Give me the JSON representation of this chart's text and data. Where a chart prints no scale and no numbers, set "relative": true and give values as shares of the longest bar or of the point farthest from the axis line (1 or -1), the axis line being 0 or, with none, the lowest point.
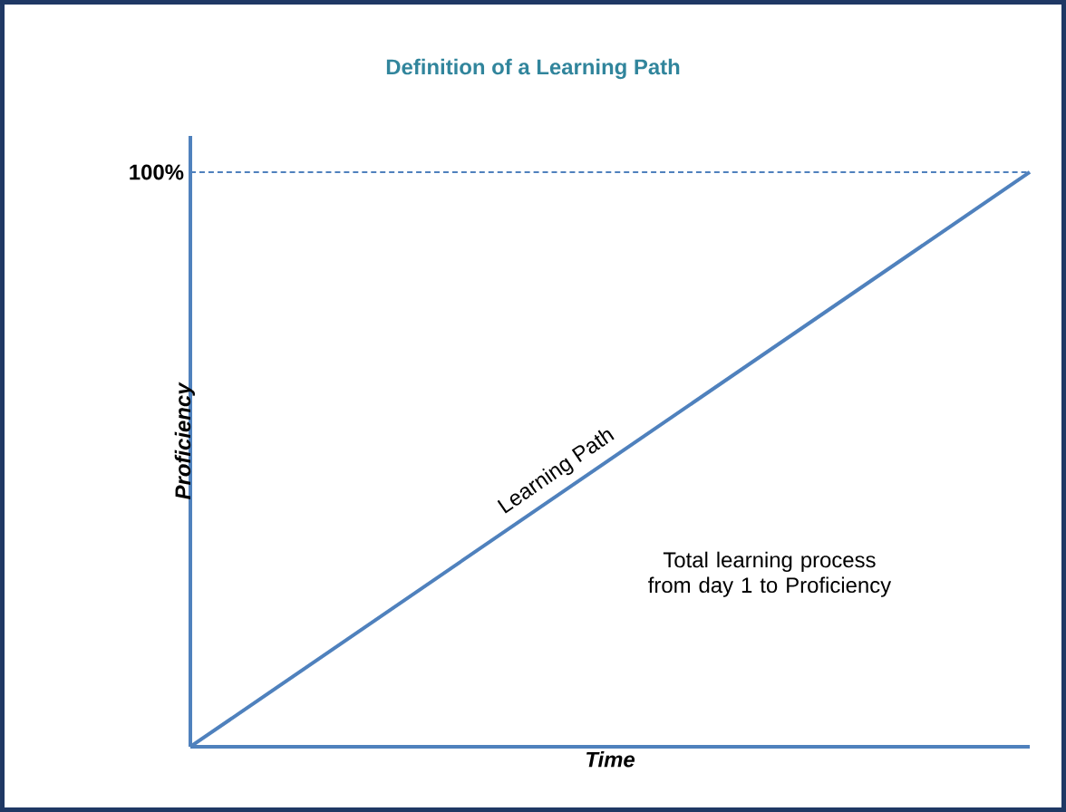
{
  "chart_data": {
    "type": "line",
    "title": "Definition of a Learning Path",
    "xlabel": "Time",
    "ylabel": "Proficiency",
    "relative": true,
    "categories": [
      null,
      null
    ],
    "series": [
      {
        "name": "Learning Path",
        "color": "#4f81bd",
        "values": [
          0,
          1
        ]
      }
    ],
    "ref_lines": [
      {
        "axis": "y",
        "value": 1,
        "label": "100%",
        "color": "#4f81bd",
        "line_style": "dashed"
      }
    ],
    "annotations": [
      "Total learning process from day 1 to Proficiency"
    ]
  }
}
